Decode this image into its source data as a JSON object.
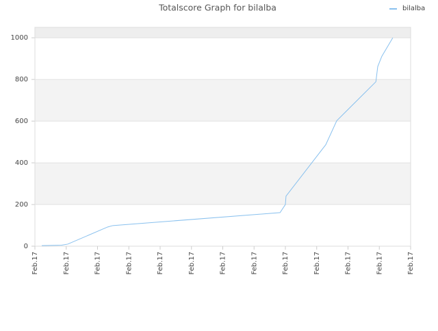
{
  "chart_data": {
    "type": "line",
    "title": "Totalscore Graph for bilalba",
    "legend": "upper right",
    "grid": true,
    "xlim": [
      0,
      12
    ],
    "xticks": [
      {
        "value": 0,
        "label": "Feb.17"
      },
      {
        "value": 1,
        "label": "Feb.17"
      },
      {
        "value": 2,
        "label": "Feb.17"
      },
      {
        "value": 3,
        "label": "Feb.17"
      },
      {
        "value": 4,
        "label": "Feb.17"
      },
      {
        "value": 5,
        "label": "Feb.17"
      },
      {
        "value": 6,
        "label": "Feb.17"
      },
      {
        "value": 7,
        "label": "Feb.17"
      },
      {
        "value": 8,
        "label": "Feb.17"
      },
      {
        "value": 9,
        "label": "Feb.17"
      },
      {
        "value": 10,
        "label": "Feb.17"
      },
      {
        "value": 11,
        "label": "Feb.17"
      },
      {
        "value": 12,
        "label": "Feb.17"
      }
    ],
    "ylim": [
      0,
      1050
    ],
    "yticks": [
      0,
      200,
      400,
      600,
      800,
      1000
    ],
    "x": [
      0.22,
      0.85,
      1.05,
      2.32,
      2.49,
      7.83,
      8.0,
      8.02,
      9.29,
      9.64,
      10.89,
      10.95,
      11.08,
      11.43
    ],
    "series": [
      {
        "name": "bilalba",
        "color": "#88c0ee",
        "values": [
          3,
          5,
          10,
          92,
          99,
          161,
          200,
          240,
          487,
          602,
          789,
          862,
          911,
          1000
        ]
      }
    ]
  }
}
